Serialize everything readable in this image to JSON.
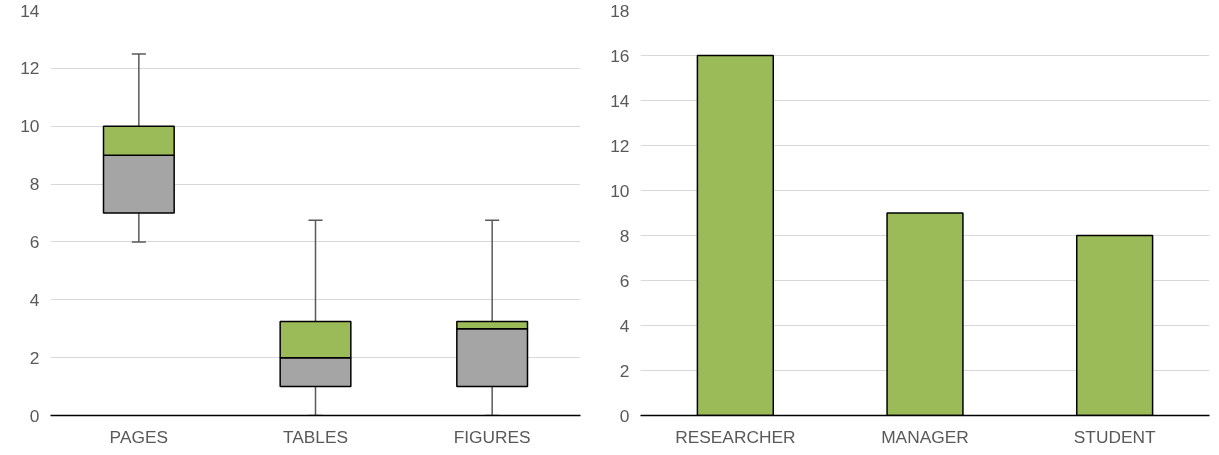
{
  "chart_data": [
    {
      "type": "box",
      "categories": [
        "PAGES",
        "TABLES",
        "FIGURES"
      ],
      "colors": [
        "#a5a5a5",
        "#a5a5a5",
        "#a5a5a5"
      ],
      "color": "#9bbb59",
      "boxes": [
        {
          "low": 6,
          "q1": 7,
          "median": 9,
          "q3": 10,
          "high": 12.5
        },
        {
          "low": 0,
          "q1": 1,
          "median": 2,
          "q3": 3.25,
          "high": 6.75
        },
        {
          "low": 0,
          "q1": 1,
          "median": 3,
          "q3": 3.25,
          "high": 6.75
        }
      ],
      "ylim": [
        0,
        14
      ],
      "yticks": [
        0,
        2,
        4,
        6,
        8,
        10,
        12,
        14
      ],
      "grid": "y"
    },
    {
      "type": "bar",
      "categories": [
        "RESEARCHER",
        "MANAGER",
        "STUDENT"
      ],
      "values": [
        16,
        9,
        8
      ],
      "color": "#9bbb59",
      "ylim": [
        0,
        18
      ],
      "yticks": [
        0,
        2,
        4,
        6,
        8,
        10,
        12,
        14,
        16,
        18
      ],
      "grid": "y"
    }
  ]
}
